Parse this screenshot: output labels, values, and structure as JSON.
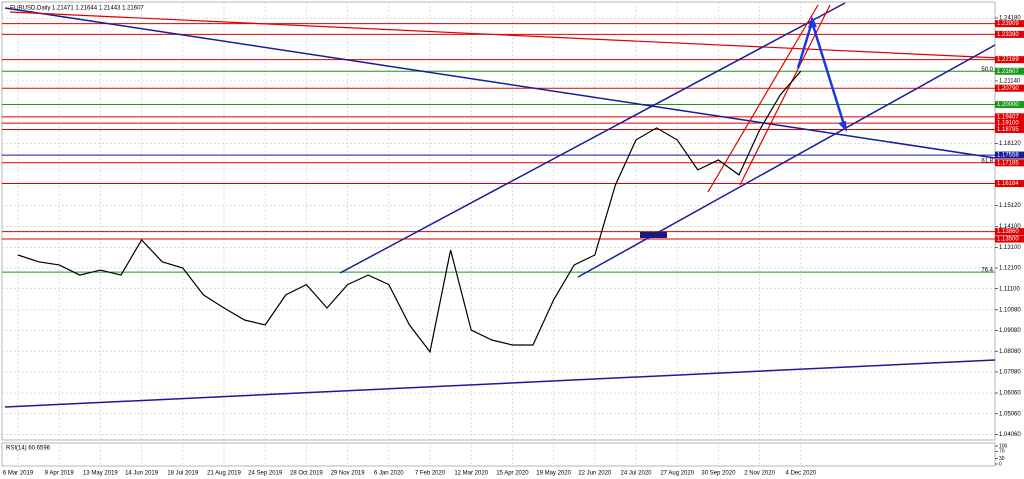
{
  "chart_data": {
    "type": "line",
    "title": "EURUSD,Daily 1.21471 1.21644 1.21443 1.21607",
    "categories": [
      "6 Mar 2019",
      null,
      "9 Apr 2019",
      null,
      "13 May 2019",
      null,
      "14 Jun 2019",
      null,
      "18 Jul 2019",
      null,
      "21 Aug 2019",
      null,
      "24 Sep 2019",
      null,
      "28 Oct 2019",
      null,
      "29 Nov 2019",
      null,
      "6 Jan 2020",
      null,
      "7 Feb 2020",
      null,
      "12 Mar 2020",
      null,
      "15 Apr 2020",
      null,
      "19 May 2020",
      null,
      "22 Jun 2020",
      null,
      "24 Jul 2020",
      null,
      "27 Aug 2020",
      null,
      "30 Sep 2020",
      null,
      "2 Nov 2020",
      null,
      "4 Dec 2020"
    ],
    "values": [
      1.1273,
      1.124,
      1.1225,
      1.1176,
      1.12,
      1.1176,
      1.1346,
      1.124,
      1.121,
      1.108,
      1.1017,
      1.0959,
      1.0935,
      1.108,
      1.113,
      1.1017,
      1.113,
      1.1176,
      1.113,
      1.0935,
      1.0805,
      1.1297,
      1.091,
      1.0862,
      1.0838,
      1.0838,
      1.1056,
      1.1225,
      1.1273,
      1.1611,
      1.1829,
      1.1887,
      1.1829,
      1.1684,
      1.1732,
      1.166,
      1.1877,
      1.2046,
      1.2161
    ],
    "color": "#000000",
    "ylim": [
      1.0379,
      1.2481
    ],
    "yticks": [
      {
        "value": 1.2418,
        "label": "1.24180"
      },
      {
        "value": 1.2114,
        "label": "1.21140"
      },
      {
        "value": 1.1812,
        "label": "1.18120"
      },
      {
        "value": 1.1512,
        "label": "1.15120"
      },
      {
        "value": 1.141,
        "label": "1.14100"
      },
      {
        "value": 1.131,
        "label": "1.13100"
      },
      {
        "value": 1.121,
        "label": "1.12100"
      },
      {
        "value": 1.111,
        "label": "1.11100"
      },
      {
        "value": 1.1008,
        "label": "1.10080"
      },
      {
        "value": 1.0908,
        "label": "1.09080"
      },
      {
        "value": 1.0808,
        "label": "1.08080"
      },
      {
        "value": 1.0708,
        "label": "1.07080"
      },
      {
        "value": 1.0606,
        "label": "1.06060"
      },
      {
        "value": 1.0506,
        "label": "1.05060"
      },
      {
        "value": 1.0406,
        "label": "1.04060"
      }
    ],
    "grid": true,
    "levels": [
      {
        "value": 1.23909,
        "label": "1.23909",
        "color": "#e00000"
      },
      {
        "value": 1.2339,
        "label": "1.23390",
        "color": "#e00000"
      },
      {
        "value": 1.22169,
        "label": "1.22169",
        "color": "#e00000"
      },
      {
        "value": 1.21607,
        "label": "1.21607",
        "color": "#1a9a1a",
        "fib": "50.0"
      },
      {
        "value": 1.2079,
        "label": "1.20790",
        "color": "#e00000"
      },
      {
        "value": 1.2,
        "label": "1.20000",
        "color": "#1a9a1a"
      },
      {
        "value": 1.19407,
        "label": "1.19407",
        "color": "#e00000"
      },
      {
        "value": 1.191,
        "label": "1.19100",
        "color": "#e00000"
      },
      {
        "value": 1.18795,
        "label": "1.18795",
        "color": "#e00000"
      },
      {
        "value": 1.17558,
        "label": "1.17558",
        "color": "#1a1a9a"
      },
      {
        "value": 1.17185,
        "label": "1.17185",
        "color": "#e00000",
        "fib": "61.8"
      },
      {
        "value": 1.16184,
        "label": "1.16184",
        "color": "#e00000"
      },
      {
        "value": 1.1386,
        "label": "1.13860",
        "color": "#e00000"
      },
      {
        "value": 1.135,
        "label": "1.13500",
        "color": "#e00000"
      },
      {
        "value": 1.119,
        "color": "#1a9a1a",
        "fib": "76.4"
      }
    ],
    "rsi": {
      "title": "RSI(14) 60.6596",
      "yticks": [
        100,
        70,
        30,
        0
      ]
    }
  }
}
